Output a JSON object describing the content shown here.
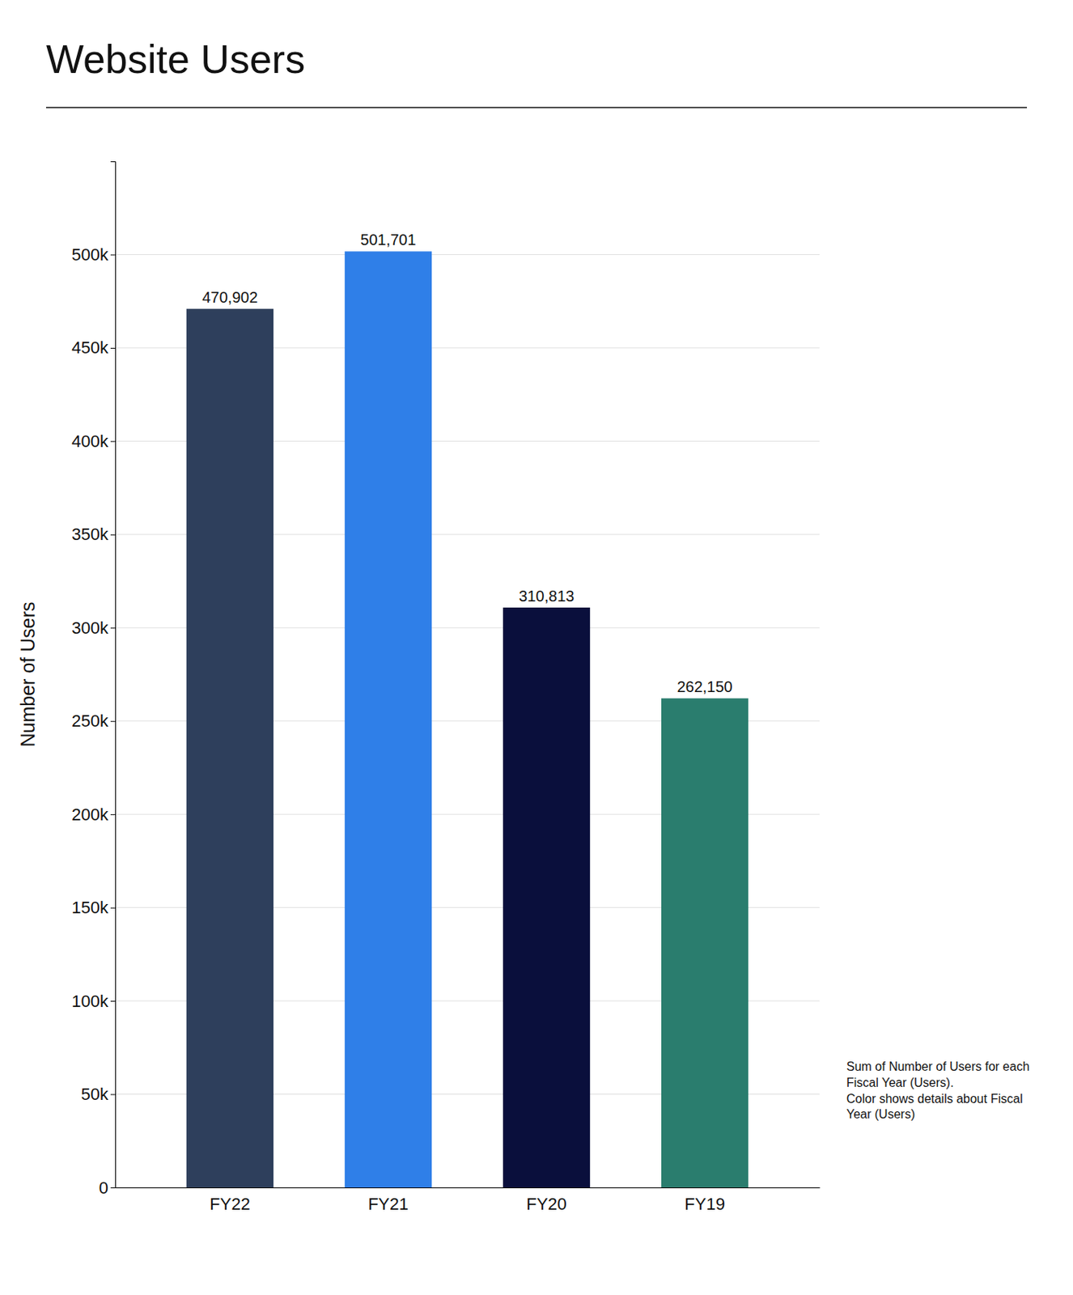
{
  "chart_data": {
    "type": "bar",
    "title": "Website Users",
    "categories": [
      "FY22",
      "FY21",
      "FY20",
      "FY19"
    ],
    "values": [
      470902,
      501701,
      310813,
      262150
    ],
    "value_labels": [
      "470,902",
      "501,701",
      "310,813",
      "262,150"
    ],
    "colors": [
      "#2e3f5c",
      "#2f7fe8",
      "#0a0f3c",
      "#2a7d6e"
    ],
    "ylabel": "Number of Users",
    "ylim": [
      0,
      550000
    ],
    "yticks": [
      0,
      {
        "value": 50000,
        "label": "50k"
      },
      {
        "value": 100000,
        "label": "100k"
      },
      {
        "value": 150000,
        "label": "150k"
      },
      {
        "value": 200000,
        "label": "200k"
      },
      {
        "value": 250000,
        "label": "250k"
      },
      {
        "value": 300000,
        "label": "300k"
      },
      {
        "value": 350000,
        "label": "350k"
      },
      {
        "value": 400000,
        "label": "400k"
      },
      {
        "value": 450000,
        "label": "450k"
      },
      {
        "value": 500000,
        "label": "500k"
      }
    ],
    "annotation": "Sum of Number of Users for each\nFiscal Year (Users).\nColor shows details about Fiscal\nYear (Users)",
    "grid": true,
    "data_labels": true
  }
}
